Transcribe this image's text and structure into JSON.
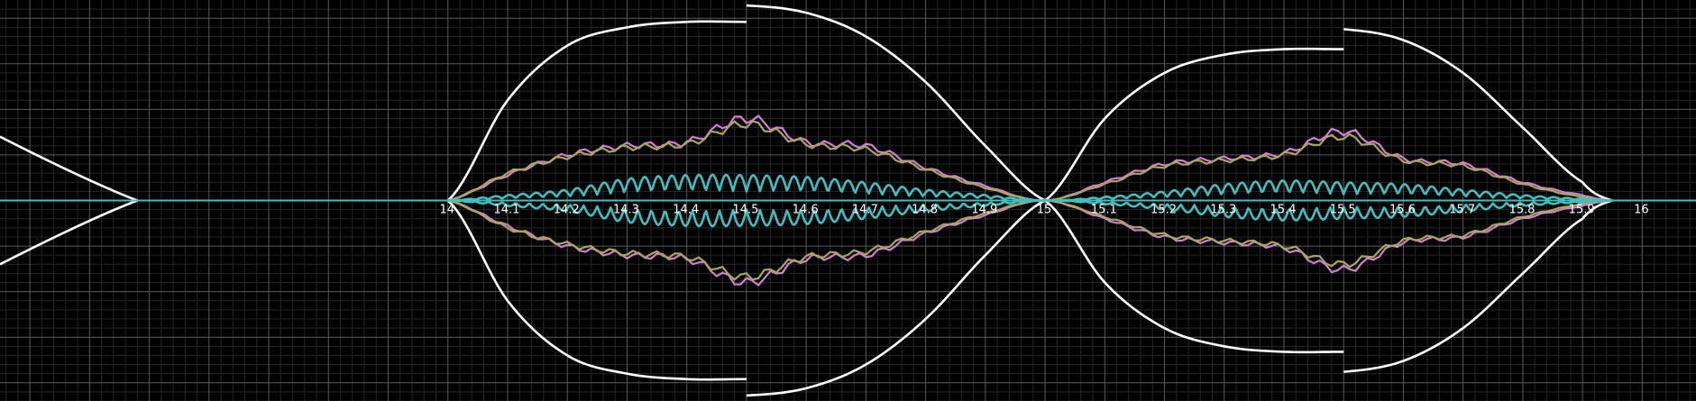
{
  "chart_data": {
    "type": "line",
    "title": "",
    "xlabel": "",
    "ylabel": "",
    "xlim": [
      13.25,
      16.09
    ],
    "ylim": [
      -1.1,
      1.1
    ],
    "grid": true,
    "x_ticks": [
      14,
      14.1,
      14.2,
      14.3,
      14.4,
      14.5,
      14.6,
      14.7,
      14.8,
      14.9,
      15,
      15.1,
      15.2,
      15.3,
      15.4,
      15.5,
      15.6,
      15.7,
      15.8,
      15.9,
      16
    ],
    "x_tick_labels": [
      "14",
      "14.1",
      "14.2",
      "14.3",
      "14.4",
      "14.5",
      "14.6",
      "14.7",
      "14.8",
      "14.9",
      "15",
      "15.1",
      "15.2",
      "15.3",
      "15.4",
      "15.5",
      "15.6",
      "15.7",
      "15.8",
      "15.9",
      "16"
    ],
    "zero_crossings": [
      14,
      15,
      15.95
    ],
    "discontinuities": [
      14.5,
      15.5
    ],
    "series": [
      {
        "color": "#ffffff",
        "segments": [
          {
            "x": [
              14.0,
              14.1,
              14.2,
              14.3,
              14.4,
              14.5
            ],
            "y": [
              0.0,
              0.55,
              0.85,
              0.95,
              0.98,
              0.98
            ]
          },
          {
            "x": [
              14.5,
              14.6,
              14.7,
              14.8,
              14.9,
              15.0
            ],
            "y": [
              1.07,
              1.03,
              0.9,
              0.65,
              0.3,
              0.0
            ]
          },
          {
            "x": [
              15.0,
              15.1,
              15.2,
              15.3,
              15.4,
              15.5
            ],
            "y": [
              0.0,
              0.45,
              0.7,
              0.8,
              0.83,
              0.83
            ]
          },
          {
            "x": [
              15.5,
              15.6,
              15.7,
              15.8,
              15.9,
              15.95
            ],
            "y": [
              0.94,
              0.88,
              0.7,
              0.4,
              0.1,
              0.0
            ]
          }
        ]
      },
      {
        "color": "#d27fd4",
        "x": [
          14.0,
          14.1,
          14.2,
          14.3,
          14.4,
          14.5,
          14.6,
          14.7,
          14.8,
          14.9,
          15.0,
          15.1,
          15.2,
          15.3,
          15.4,
          15.5,
          15.6,
          15.7,
          15.8,
          15.9,
          15.95
        ],
        "y": [
          0.0,
          0.14,
          0.25,
          0.3,
          0.32,
          0.45,
          0.32,
          0.3,
          0.18,
          0.08,
          0.0,
          0.1,
          0.2,
          0.23,
          0.26,
          0.38,
          0.23,
          0.2,
          0.1,
          0.03,
          0.0
        ]
      },
      {
        "color": "#a8a85a",
        "x": [
          14.0,
          14.1,
          14.2,
          14.3,
          14.4,
          14.5,
          14.6,
          14.7,
          14.8,
          14.9,
          15.0,
          15.1,
          15.2,
          15.3,
          15.4,
          15.5,
          15.6,
          15.7,
          15.8,
          15.9,
          15.95
        ],
        "y": [
          0.0,
          0.15,
          0.24,
          0.29,
          0.31,
          0.42,
          0.31,
          0.28,
          0.17,
          0.07,
          0.0,
          0.09,
          0.19,
          0.22,
          0.25,
          0.35,
          0.22,
          0.19,
          0.09,
          0.02,
          0.0
        ]
      },
      {
        "color": "#3fbfbf",
        "envelope": {
          "x": [
            14.0,
            14.1,
            14.2,
            14.3,
            14.4,
            14.5,
            14.6,
            14.7,
            14.8,
            14.9,
            15.0,
            15.1,
            15.2,
            15.3,
            15.4,
            15.5,
            15.6,
            15.7,
            15.8,
            15.9,
            15.95
          ],
          "y": [
            0.0,
            0.03,
            0.06,
            0.12,
            0.14,
            0.14,
            0.13,
            0.1,
            0.06,
            0.03,
            0.0,
            0.02,
            0.05,
            0.09,
            0.11,
            0.1,
            0.09,
            0.06,
            0.03,
            0.01,
            0.0
          ]
        }
      }
    ]
  }
}
